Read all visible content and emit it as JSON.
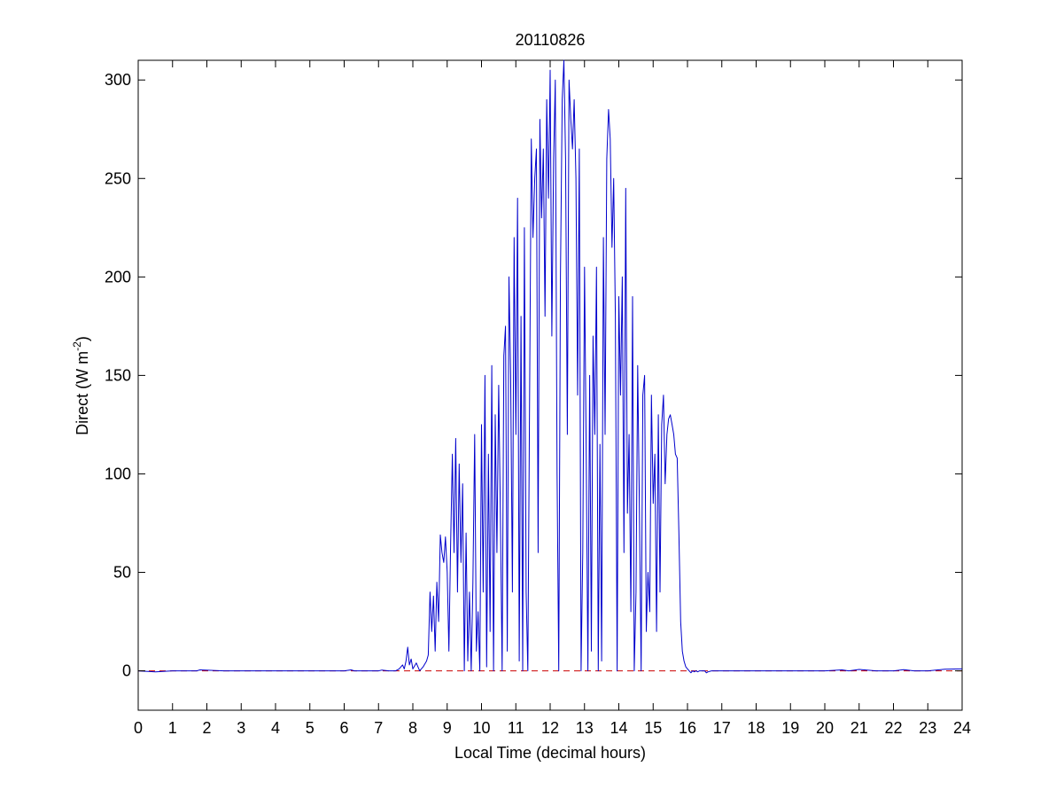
{
  "chart_data": {
    "type": "line",
    "title": "20110826",
    "xlabel": "Local Time (decimal hours)",
    "ylabel_main": "Direct (W m",
    "ylabel_sup": "-2",
    "ylabel_close": ")",
    "xlim": [
      0,
      24
    ],
    "ylim": [
      -20,
      310
    ],
    "xticks": [
      0,
      1,
      2,
      3,
      4,
      5,
      6,
      7,
      8,
      9,
      10,
      11,
      12,
      13,
      14,
      15,
      16,
      17,
      18,
      19,
      20,
      21,
      22,
      23,
      24
    ],
    "yticks": [
      0,
      50,
      100,
      150,
      200,
      250,
      300
    ],
    "grid": false,
    "colors": {
      "series": "#0000cc",
      "reference": "#cc0000",
      "axes": "#000000",
      "background": "#ffffff"
    },
    "reference_line": {
      "y": 0,
      "style": "dashed"
    },
    "series": [
      {
        "x": [
          0,
          0.5,
          1.0,
          1.7,
          1.8,
          2.5,
          3,
          4,
          5,
          6,
          6.2,
          6.3,
          6.5,
          7,
          7.1,
          7.3,
          7.5,
          7.6,
          7.7,
          7.75,
          7.8,
          7.85,
          7.9,
          7.95,
          8.0,
          8.1,
          8.2,
          8.3,
          8.4,
          8.45,
          8.5,
          8.55,
          8.6,
          8.65,
          8.7,
          8.75,
          8.8,
          8.85,
          8.9,
          8.95,
          9.0,
          9.05,
          9.1,
          9.15,
          9.2,
          9.25,
          9.3,
          9.35,
          9.4,
          9.45,
          9.5,
          9.55,
          9.6,
          9.65,
          9.7,
          9.75,
          9.8,
          9.85,
          9.9,
          9.95,
          10.0,
          10.05,
          10.1,
          10.15,
          10.2,
          10.25,
          10.3,
          10.35,
          10.4,
          10.45,
          10.5,
          10.55,
          10.6,
          10.65,
          10.7,
          10.75,
          10.8,
          10.85,
          10.9,
          10.95,
          11.0,
          11.05,
          11.1,
          11.15,
          11.2,
          11.25,
          11.3,
          11.35,
          11.4,
          11.45,
          11.5,
          11.55,
          11.6,
          11.65,
          11.7,
          11.75,
          11.8,
          11.85,
          11.9,
          11.95,
          12.0,
          12.05,
          12.1,
          12.15,
          12.2,
          12.25,
          12.3,
          12.35,
          12.4,
          12.45,
          12.5,
          12.55,
          12.6,
          12.65,
          12.7,
          12.75,
          12.8,
          12.85,
          12.9,
          12.95,
          13.0,
          13.05,
          13.1,
          13.15,
          13.2,
          13.25,
          13.3,
          13.35,
          13.4,
          13.45,
          13.5,
          13.55,
          13.6,
          13.65,
          13.7,
          13.75,
          13.8,
          13.85,
          13.9,
          13.95,
          14.0,
          14.05,
          14.1,
          14.15,
          14.2,
          14.25,
          14.3,
          14.35,
          14.4,
          14.45,
          14.5,
          14.55,
          14.6,
          14.65,
          14.7,
          14.75,
          14.8,
          14.85,
          14.9,
          14.95,
          15.0,
          15.05,
          15.1,
          15.15,
          15.2,
          15.25,
          15.3,
          15.35,
          15.4,
          15.45,
          15.5,
          15.55,
          15.6,
          15.65,
          15.7,
          15.75,
          15.8,
          15.85,
          15.9,
          15.95,
          16.0,
          16.05,
          16.1,
          16.15,
          16.2,
          16.25,
          16.3,
          16.35,
          16.4,
          16.45,
          16.5,
          16.55,
          16.6,
          16.7,
          17.0,
          18,
          19,
          20,
          20.5,
          20.7,
          21,
          21.5,
          22,
          22.3,
          22.6,
          23,
          23.5,
          24
        ],
        "y": [
          0,
          -0.5,
          0,
          0,
          0.5,
          0,
          0,
          0,
          0,
          0,
          0.5,
          0,
          0,
          0,
          0.4,
          0,
          0,
          1,
          3,
          1,
          5,
          12,
          3,
          6,
          1,
          4,
          0,
          2,
          5,
          8,
          40,
          20,
          38,
          10,
          45,
          25,
          69,
          60,
          55,
          68,
          50,
          10,
          63,
          110,
          60,
          118,
          40,
          105,
          55,
          95,
          0,
          70,
          5,
          40,
          0,
          45,
          120,
          10,
          30,
          0,
          125,
          40,
          150,
          2,
          110,
          20,
          155,
          0,
          130,
          60,
          145,
          80,
          0,
          160,
          175,
          10,
          200,
          150,
          40,
          220,
          120,
          240,
          5,
          180,
          0,
          225,
          40,
          0,
          140,
          270,
          220,
          250,
          265,
          60,
          280,
          230,
          265,
          180,
          290,
          240,
          305,
          170,
          260,
          300,
          100,
          0,
          200,
          290,
          310,
          260,
          120,
          300,
          280,
          265,
          290,
          250,
          140,
          265,
          0,
          60,
          205,
          110,
          0,
          150,
          10,
          170,
          120,
          205,
          0,
          115,
          5,
          220,
          120,
          260,
          285,
          270,
          215,
          250,
          180,
          0,
          190,
          140,
          200,
          60,
          245,
          80,
          120,
          30,
          190,
          0,
          40,
          155,
          80,
          0,
          140,
          150,
          20,
          50,
          30,
          140,
          85,
          110,
          20,
          130,
          40,
          125,
          140,
          95,
          120,
          128,
          130,
          125,
          120,
          110,
          108,
          70,
          25,
          10,
          5,
          2,
          1,
          0,
          -1,
          0,
          -0.5,
          0,
          -0.5,
          0,
          0,
          0,
          0,
          -1,
          -0.5,
          0,
          0,
          0,
          0,
          0,
          0.5,
          0,
          0.7,
          0,
          0,
          0.6,
          0,
          0,
          0.8,
          1
        ]
      }
    ]
  }
}
